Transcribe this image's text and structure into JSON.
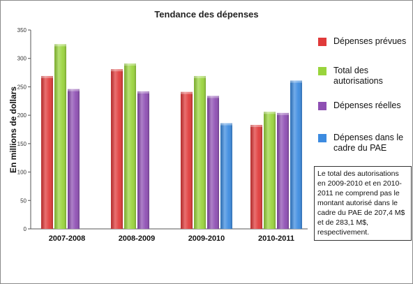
{
  "chart_data": {
    "type": "bar",
    "title": "Tendance des dépenses",
    "xlabel": "",
    "ylabel": "En millions de dollars",
    "ylim": [
      0,
      350
    ],
    "yticks": [
      0,
      50,
      100,
      150,
      200,
      250,
      300,
      350
    ],
    "grid": false,
    "legend_position": "right",
    "categories": [
      "2007-2008",
      "2008-2009",
      "2009-2010",
      "2010-2011"
    ],
    "series": [
      {
        "name": "Dépenses prévues",
        "color": "#e03a3a",
        "values": [
          269,
          281,
          241,
          183
        ]
      },
      {
        "name": "Total des autorisations",
        "color": "#99d43c",
        "values": [
          325,
          291,
          269,
          206
        ]
      },
      {
        "name": "Dépenses réelles",
        "color": "#8e4fb3",
        "values": [
          246,
          242,
          234,
          204
        ]
      },
      {
        "name": "Dépenses dans le cadre du PAE",
        "color": "#3c8be0",
        "values": [
          null,
          null,
          186,
          261
        ]
      }
    ],
    "note": "Le total des autorisations en 2009-2010 et en 2010-2011 ne comprend pas le montant autorisé dans le cadre du PAE de 207,4 M$ et de 283,1 M$, respectivement."
  }
}
